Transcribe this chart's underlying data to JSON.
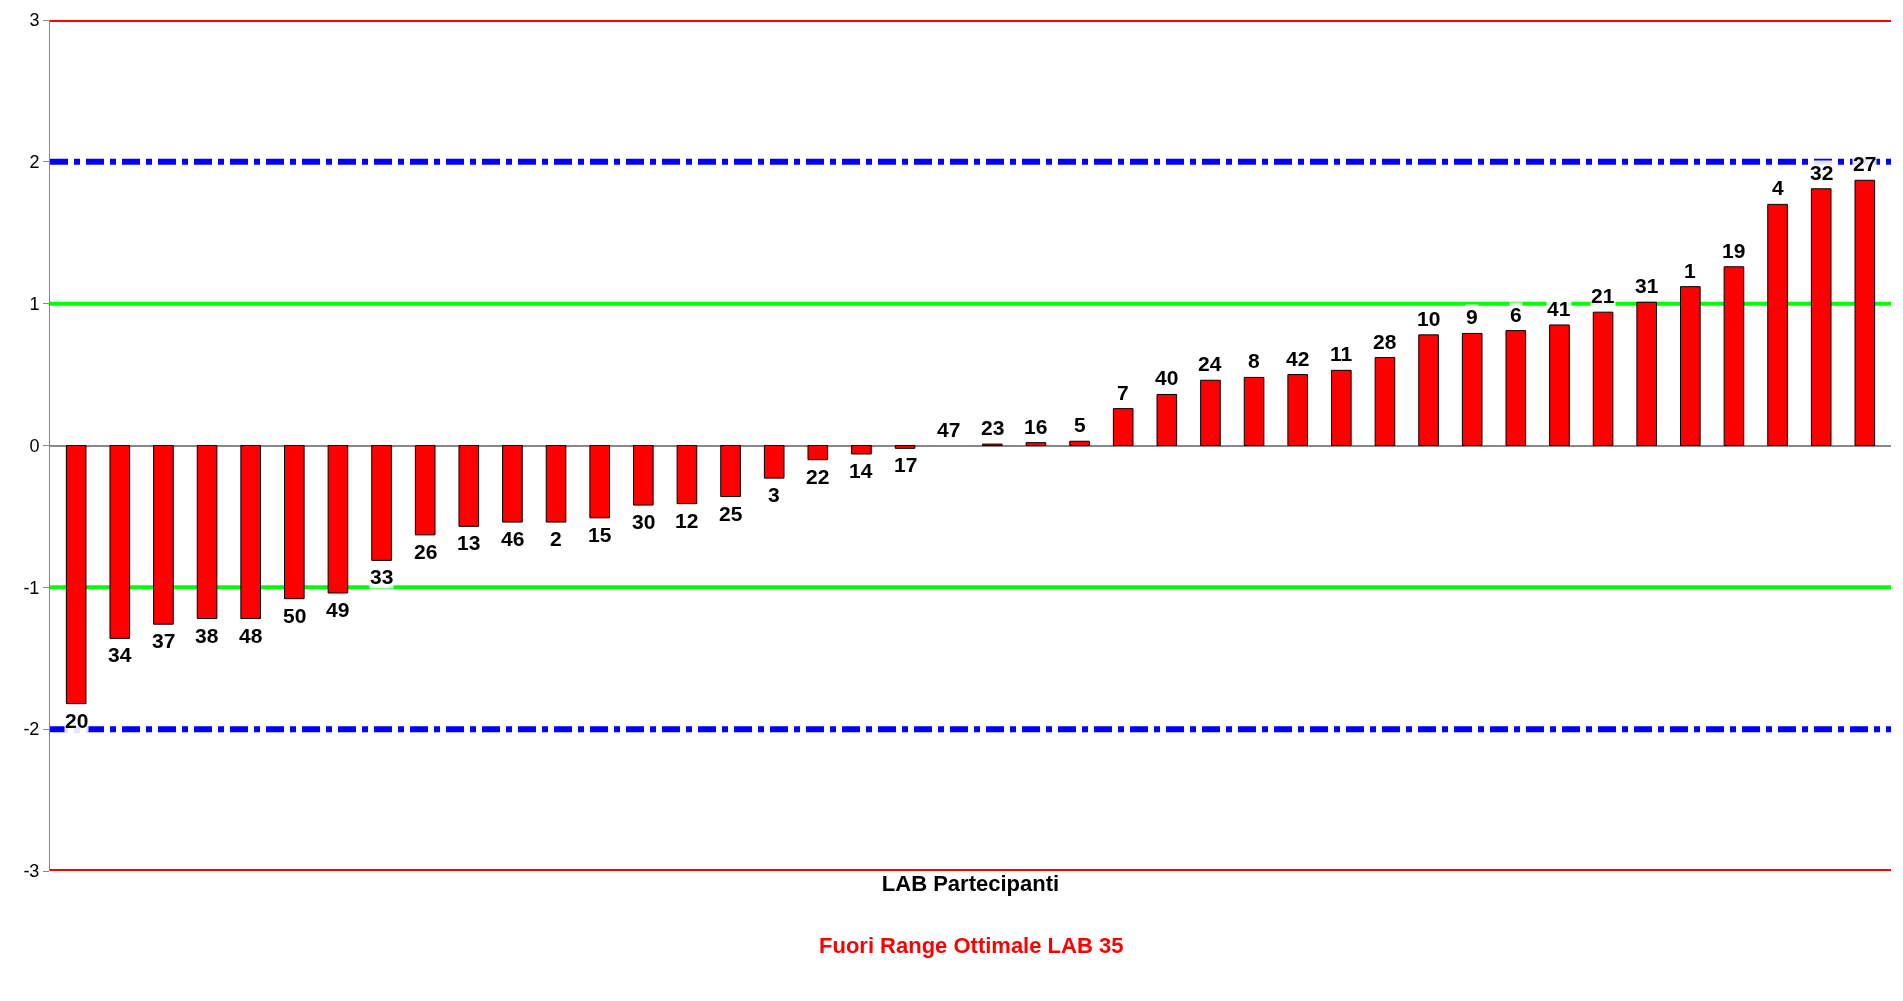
{
  "chart_data": {
    "type": "bar",
    "xlabel": "LAB Partecipanti",
    "categories": [
      "20",
      "34",
      "37",
      "38",
      "48",
      "50",
      "49",
      "33",
      "26",
      "13",
      "46",
      "2",
      "15",
      "30",
      "12",
      "25",
      "3",
      "22",
      "14",
      "17",
      "47",
      "23",
      "16",
      "5",
      "7",
      "40",
      "24",
      "8",
      "42",
      "11",
      "28",
      "10",
      "9",
      "6",
      "41",
      "21",
      "31",
      "1",
      "19",
      "4",
      "32",
      "27"
    ],
    "values": [
      -1.82,
      -1.36,
      -1.26,
      -1.22,
      -1.22,
      -1.08,
      -1.04,
      -0.81,
      -0.63,
      -0.57,
      -0.54,
      -0.54,
      -0.51,
      -0.42,
      -0.41,
      -0.36,
      -0.23,
      -0.1,
      -0.06,
      -0.02,
      0,
      0.01,
      0.02,
      0.03,
      0.26,
      0.36,
      0.46,
      0.48,
      0.5,
      0.53,
      0.62,
      0.78,
      0.79,
      0.81,
      0.85,
      0.94,
      1.01,
      1.12,
      1.26,
      1.7,
      1.81,
      1.87
    ],
    "color": "#ff0000",
    "ylim": [
      -3,
      3
    ],
    "yticks": [
      -3,
      -2,
      -1,
      0,
      1,
      2,
      3
    ],
    "grid": false,
    "tick_labels": "y",
    "ref_lines": [
      {
        "axis": "y",
        "value": 3,
        "color": "#ff0000",
        "line_style": "solid"
      },
      {
        "axis": "y",
        "value": 2,
        "color": "#0000ff",
        "line_style": "dashed"
      },
      {
        "axis": "y",
        "value": 1,
        "color": "#00ff00",
        "line_style": "solid"
      },
      {
        "axis": "y",
        "value": -1,
        "color": "#00ff00",
        "line_style": "solid"
      },
      {
        "axis": "y",
        "value": -2,
        "color": "#0000ff",
        "line_style": "dashed"
      },
      {
        "axis": "y",
        "value": -3,
        "color": "#ff0000",
        "line_style": "solid"
      }
    ],
    "annotations": [
      "Fuori Range Ottimale LAB 35"
    ]
  }
}
